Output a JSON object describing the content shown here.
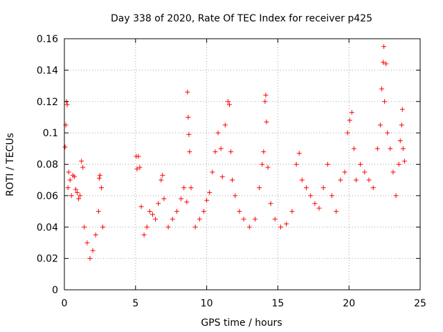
{
  "chart_data": {
    "type": "scatter",
    "title": "Day 338 of 2020, Rate Of TEC Index for receiver p425",
    "xlabel": "GPS time / hours",
    "ylabel": "ROTI / TECUs",
    "xlim": [
      0,
      25
    ],
    "ylim": [
      0,
      0.16
    ],
    "xticks": [
      0,
      5,
      10,
      15,
      20,
      25
    ],
    "yticks": [
      0,
      0.02,
      0.04,
      0.06,
      0.08,
      0.1,
      0.12,
      0.14,
      0.16
    ],
    "xtick_labels": [
      "0",
      "5",
      "10",
      "15",
      "20",
      "25"
    ],
    "ytick_labels": [
      "0",
      "0.02",
      "0.04",
      "0.06",
      "0.08",
      "0.1",
      "0.12",
      "0.14",
      "0.16"
    ],
    "grid": true,
    "marker": "+",
    "color": "#ff0000",
    "series": [
      {
        "points": [
          [
            0.05,
            0.091
          ],
          [
            0.1,
            0.105
          ],
          [
            0.15,
            0.12
          ],
          [
            0.2,
            0.118
          ],
          [
            0.25,
            0.065
          ],
          [
            0.3,
            0.075
          ],
          [
            0.4,
            0.07
          ],
          [
            0.5,
            0.06
          ],
          [
            0.6,
            0.073
          ],
          [
            0.7,
            0.072
          ],
          [
            0.8,
            0.064
          ],
          [
            0.9,
            0.062
          ],
          [
            1.0,
            0.058
          ],
          [
            1.1,
            0.06
          ],
          [
            1.2,
            0.082
          ],
          [
            1.3,
            0.078
          ],
          [
            1.4,
            0.04
          ],
          [
            1.6,
            0.03
          ],
          [
            1.8,
            0.02
          ],
          [
            2.0,
            0.025
          ],
          [
            2.2,
            0.035
          ],
          [
            2.4,
            0.05
          ],
          [
            2.45,
            0.071
          ],
          [
            2.5,
            0.073
          ],
          [
            2.6,
            0.065
          ],
          [
            2.7,
            0.04
          ],
          [
            5.05,
            0.085
          ],
          [
            5.1,
            0.077
          ],
          [
            5.2,
            0.085
          ],
          [
            5.3,
            0.078
          ],
          [
            5.4,
            0.053
          ],
          [
            5.6,
            0.035
          ],
          [
            5.8,
            0.04
          ],
          [
            6.0,
            0.05
          ],
          [
            6.2,
            0.048
          ],
          [
            6.4,
            0.045
          ],
          [
            6.6,
            0.055
          ],
          [
            6.8,
            0.07
          ],
          [
            6.9,
            0.073
          ],
          [
            7.0,
            0.058
          ],
          [
            7.3,
            0.04
          ],
          [
            7.6,
            0.045
          ],
          [
            7.9,
            0.05
          ],
          [
            8.2,
            0.058
          ],
          [
            8.4,
            0.065
          ],
          [
            8.6,
            0.056
          ],
          [
            8.65,
            0.126
          ],
          [
            8.7,
            0.11
          ],
          [
            8.75,
            0.099
          ],
          [
            8.8,
            0.088
          ],
          [
            8.9,
            0.065
          ],
          [
            9.2,
            0.04
          ],
          [
            9.5,
            0.045
          ],
          [
            9.8,
            0.05
          ],
          [
            10.0,
            0.057
          ],
          [
            10.2,
            0.062
          ],
          [
            10.4,
            0.075
          ],
          [
            10.6,
            0.088
          ],
          [
            10.8,
            0.1
          ],
          [
            11.0,
            0.09
          ],
          [
            11.1,
            0.072
          ],
          [
            11.3,
            0.105
          ],
          [
            11.5,
            0.12
          ],
          [
            11.6,
            0.118
          ],
          [
            11.7,
            0.088
          ],
          [
            11.8,
            0.07
          ],
          [
            12.0,
            0.06
          ],
          [
            12.3,
            0.05
          ],
          [
            12.6,
            0.045
          ],
          [
            13.0,
            0.04
          ],
          [
            13.4,
            0.045
          ],
          [
            13.7,
            0.065
          ],
          [
            13.9,
            0.08
          ],
          [
            14.0,
            0.088
          ],
          [
            14.1,
            0.12
          ],
          [
            14.15,
            0.124
          ],
          [
            14.2,
            0.107
          ],
          [
            14.3,
            0.078
          ],
          [
            14.5,
            0.055
          ],
          [
            14.8,
            0.045
          ],
          [
            15.2,
            0.04
          ],
          [
            15.6,
            0.042
          ],
          [
            16.0,
            0.05
          ],
          [
            16.3,
            0.08
          ],
          [
            16.5,
            0.087
          ],
          [
            16.7,
            0.07
          ],
          [
            17.0,
            0.065
          ],
          [
            17.3,
            0.06
          ],
          [
            17.6,
            0.055
          ],
          [
            17.9,
            0.052
          ],
          [
            18.2,
            0.065
          ],
          [
            18.5,
            0.08
          ],
          [
            18.8,
            0.06
          ],
          [
            19.1,
            0.05
          ],
          [
            19.4,
            0.07
          ],
          [
            19.7,
            0.075
          ],
          [
            19.9,
            0.1
          ],
          [
            20.05,
            0.108
          ],
          [
            20.2,
            0.113
          ],
          [
            20.35,
            0.09
          ],
          [
            20.5,
            0.07
          ],
          [
            20.8,
            0.08
          ],
          [
            21.1,
            0.075
          ],
          [
            21.4,
            0.07
          ],
          [
            21.7,
            0.065
          ],
          [
            22.0,
            0.09
          ],
          [
            22.2,
            0.105
          ],
          [
            22.3,
            0.128
          ],
          [
            22.4,
            0.145
          ],
          [
            22.45,
            0.155
          ],
          [
            22.5,
            0.12
          ],
          [
            22.6,
            0.144
          ],
          [
            22.7,
            0.1
          ],
          [
            22.9,
            0.09
          ],
          [
            23.1,
            0.075
          ],
          [
            23.3,
            0.06
          ],
          [
            23.5,
            0.08
          ],
          [
            23.6,
            0.095
          ],
          [
            23.7,
            0.105
          ],
          [
            23.75,
            0.115
          ],
          [
            23.8,
            0.09
          ],
          [
            23.9,
            0.082
          ]
        ]
      }
    ]
  }
}
